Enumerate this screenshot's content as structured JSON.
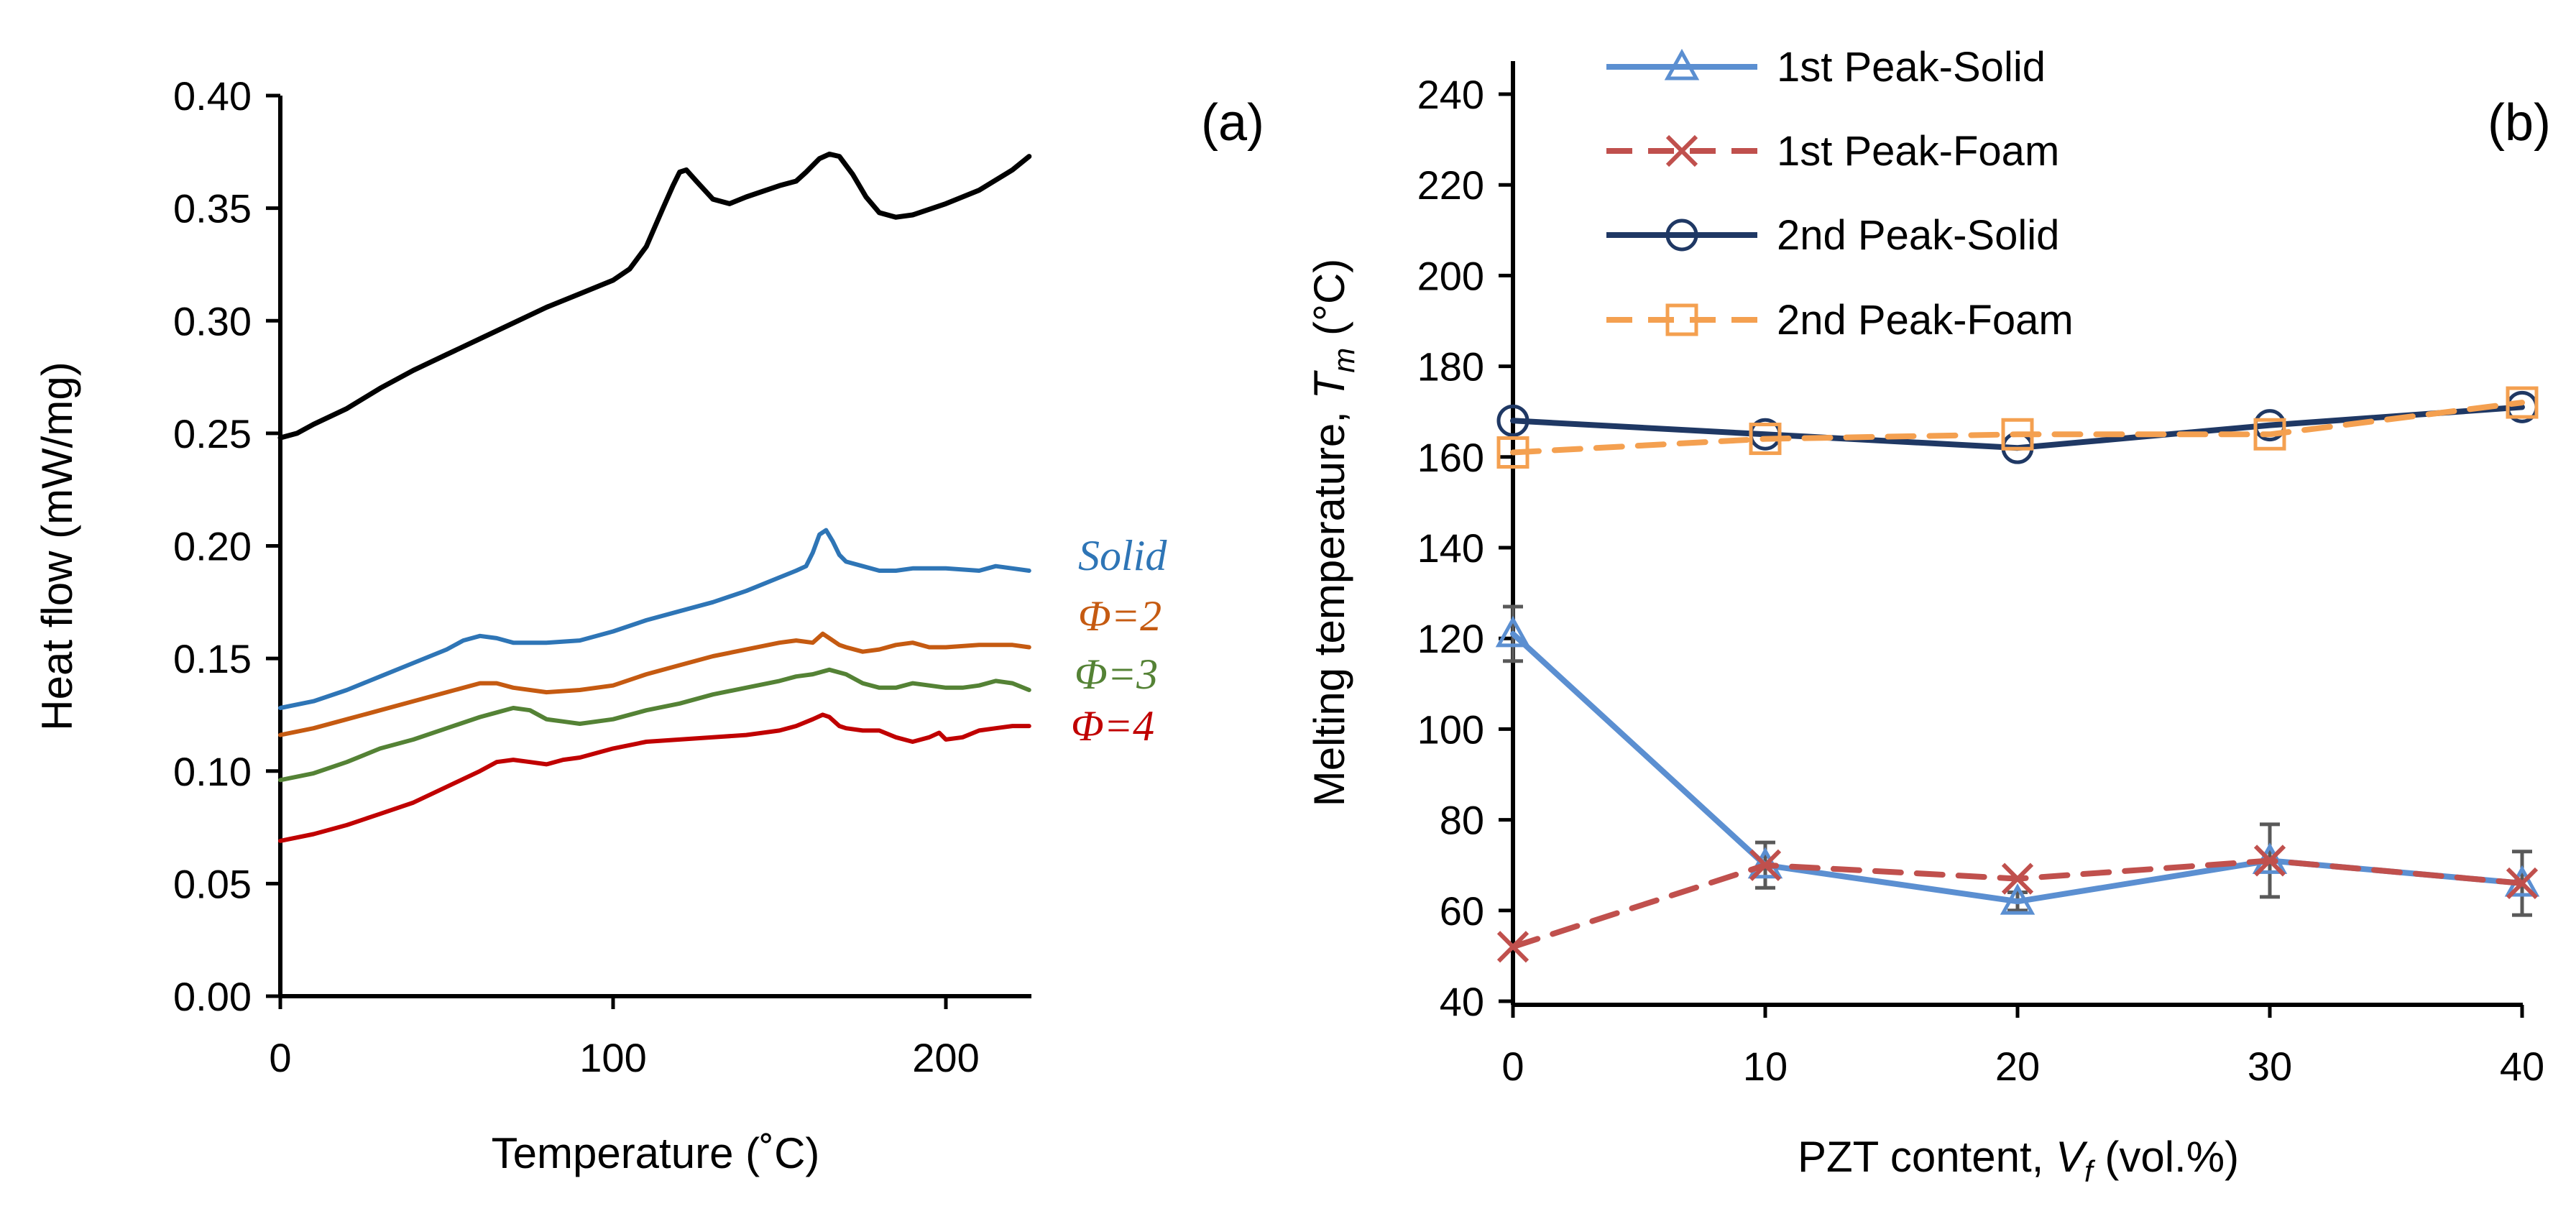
{
  "chart_data": [
    {
      "type": "line",
      "panel_label": "(a)",
      "title": "",
      "xlabel": "Temperature (˚C)",
      "ylabel": "Heat flow (mW/mg)",
      "xlim": [
        0,
        225
      ],
      "ylim": [
        0.0,
        0.4
      ],
      "xticks": [
        0,
        100,
        200
      ],
      "xtick_labels": [
        "0",
        "100",
        "200"
      ],
      "yticks": [
        0.0,
        0.05,
        0.1,
        0.15,
        0.2,
        0.25,
        0.3,
        0.35,
        0.4
      ],
      "ytick_labels": [
        "0.00",
        "0.05",
        "0.10",
        "0.15",
        "0.20",
        "0.25",
        "0.30",
        "0.35",
        "0.40"
      ],
      "grid": false,
      "series": [
        {
          "name": "unlabeled",
          "label": "",
          "color": "#000000",
          "x": [
            0,
            5,
            10,
            20,
            30,
            40,
            50,
            60,
            70,
            80,
            90,
            100,
            105,
            110,
            115,
            118,
            120,
            122,
            125,
            130,
            135,
            140,
            150,
            155,
            158,
            162,
            165,
            168,
            172,
            176,
            180,
            185,
            190,
            200,
            210,
            220,
            225
          ],
          "y": [
            0.248,
            0.25,
            0.254,
            0.261,
            0.27,
            0.278,
            0.285,
            0.292,
            0.299,
            0.306,
            0.312,
            0.318,
            0.323,
            0.333,
            0.35,
            0.36,
            0.366,
            0.367,
            0.362,
            0.354,
            0.352,
            0.355,
            0.36,
            0.362,
            0.366,
            0.372,
            0.374,
            0.373,
            0.365,
            0.355,
            0.348,
            0.346,
            0.347,
            0.352,
            0.358,
            0.367,
            0.373
          ]
        },
        {
          "name": "Solid",
          "label": "Solid",
          "color": "#2E75B6",
          "x": [
            0,
            10,
            20,
            30,
            40,
            50,
            55,
            60,
            65,
            70,
            80,
            90,
            100,
            110,
            120,
            130,
            140,
            150,
            155,
            158,
            160,
            162,
            164,
            166,
            168,
            170,
            175,
            180,
            185,
            190,
            200,
            210,
            215,
            220,
            225
          ],
          "y": [
            0.128,
            0.131,
            0.136,
            0.142,
            0.148,
            0.154,
            0.158,
            0.16,
            0.159,
            0.157,
            0.157,
            0.158,
            0.162,
            0.167,
            0.171,
            0.175,
            0.18,
            0.186,
            0.189,
            0.191,
            0.197,
            0.205,
            0.207,
            0.202,
            0.196,
            0.193,
            0.191,
            0.189,
            0.189,
            0.19,
            0.19,
            0.189,
            0.191,
            0.19,
            0.189
          ]
        },
        {
          "name": "Φ=2",
          "label": "Φ=2",
          "color": "#C55A11",
          "x": [
            0,
            10,
            20,
            30,
            40,
            50,
            60,
            65,
            70,
            80,
            90,
            100,
            110,
            120,
            130,
            140,
            150,
            155,
            160,
            163,
            165,
            168,
            170,
            175,
            180,
            185,
            190,
            195,
            200,
            210,
            220,
            225
          ],
          "y": [
            0.116,
            0.119,
            0.123,
            0.127,
            0.131,
            0.135,
            0.139,
            0.139,
            0.137,
            0.135,
            0.136,
            0.138,
            0.143,
            0.147,
            0.151,
            0.154,
            0.157,
            0.158,
            0.157,
            0.161,
            0.159,
            0.156,
            0.155,
            0.153,
            0.154,
            0.156,
            0.157,
            0.155,
            0.155,
            0.156,
            0.156,
            0.155
          ]
        },
        {
          "name": "Φ=3",
          "label": "Φ=3",
          "color": "#548235",
          "x": [
            0,
            10,
            20,
            30,
            40,
            50,
            60,
            65,
            70,
            75,
            80,
            85,
            90,
            100,
            110,
            120,
            130,
            140,
            150,
            155,
            160,
            165,
            170,
            175,
            180,
            185,
            190,
            195,
            200,
            205,
            210,
            215,
            220,
            225
          ],
          "y": [
            0.096,
            0.099,
            0.104,
            0.11,
            0.114,
            0.119,
            0.124,
            0.126,
            0.128,
            0.127,
            0.123,
            0.122,
            0.121,
            0.123,
            0.127,
            0.13,
            0.134,
            0.137,
            0.14,
            0.142,
            0.143,
            0.145,
            0.143,
            0.139,
            0.137,
            0.137,
            0.139,
            0.138,
            0.137,
            0.137,
            0.138,
            0.14,
            0.139,
            0.136
          ]
        },
        {
          "name": "Φ=4",
          "label": "Φ=4",
          "color": "#C00000",
          "x": [
            0,
            10,
            20,
            30,
            40,
            50,
            60,
            65,
            70,
            75,
            80,
            85,
            90,
            100,
            110,
            120,
            130,
            140,
            150,
            155,
            160,
            163,
            165,
            168,
            170,
            175,
            180,
            185,
            190,
            195,
            198,
            200,
            205,
            210,
            215,
            220,
            225
          ],
          "y": [
            0.069,
            0.072,
            0.076,
            0.081,
            0.086,
            0.093,
            0.1,
            0.104,
            0.105,
            0.104,
            0.103,
            0.105,
            0.106,
            0.11,
            0.113,
            0.114,
            0.115,
            0.116,
            0.118,
            0.12,
            0.123,
            0.125,
            0.124,
            0.12,
            0.119,
            0.118,
            0.118,
            0.115,
            0.113,
            0.115,
            0.117,
            0.114,
            0.115,
            0.118,
            0.119,
            0.12,
            0.12
          ]
        }
      ]
    },
    {
      "type": "line",
      "panel_label": "(b)",
      "title": "",
      "xlabel": "PZT content, V_f (vol.%)",
      "xlabel_parts": [
        "PZT content, ",
        "V",
        "f",
        " (vol.%)"
      ],
      "ylabel": "Melting temperature, T_m (°C)",
      "ylabel_parts": [
        "Melting temperature, ",
        "T",
        "m",
        " (°C)"
      ],
      "xlim": [
        0,
        40
      ],
      "ylim": [
        40,
        250
      ],
      "xticks": [
        0,
        10,
        20,
        30,
        40
      ],
      "xtick_labels": [
        "0",
        "10",
        "20",
        "30",
        "40"
      ],
      "yticks": [
        40,
        60,
        80,
        100,
        120,
        140,
        160,
        180,
        200,
        220,
        240
      ],
      "ytick_labels": [
        "40",
        "60",
        "80",
        "100",
        "120",
        "140",
        "160",
        "180",
        "200",
        "220",
        "240"
      ],
      "grid": false,
      "legend_position": "top-left",
      "x": [
        0,
        10,
        20,
        30,
        40
      ],
      "series": [
        {
          "name": "1st Peak-Solid",
          "color": "#5B8FD1",
          "marker": "triangle",
          "dashed": false,
          "values": [
            121,
            70,
            62,
            71,
            66
          ],
          "error": [
            6,
            5,
            2,
            8,
            7
          ]
        },
        {
          "name": "1st Peak-Foam",
          "color": "#C0504D",
          "marker": "x",
          "dashed": true,
          "values": [
            52,
            70,
            67,
            71,
            66
          ],
          "error": [
            0,
            0,
            0,
            0,
            0
          ]
        },
        {
          "name": "2nd Peak-Solid",
          "color": "#1F3864",
          "marker": "circle",
          "dashed": false,
          "values": [
            168,
            165,
            162,
            167,
            171
          ],
          "error": [
            0,
            0,
            0,
            0,
            0
          ]
        },
        {
          "name": "2nd Peak-Foam",
          "color": "#F4A050",
          "marker": "square",
          "dashed": true,
          "values": [
            161,
            164,
            165,
            165,
            172
          ],
          "error": [
            0,
            0,
            0,
            0,
            0
          ]
        }
      ]
    }
  ]
}
